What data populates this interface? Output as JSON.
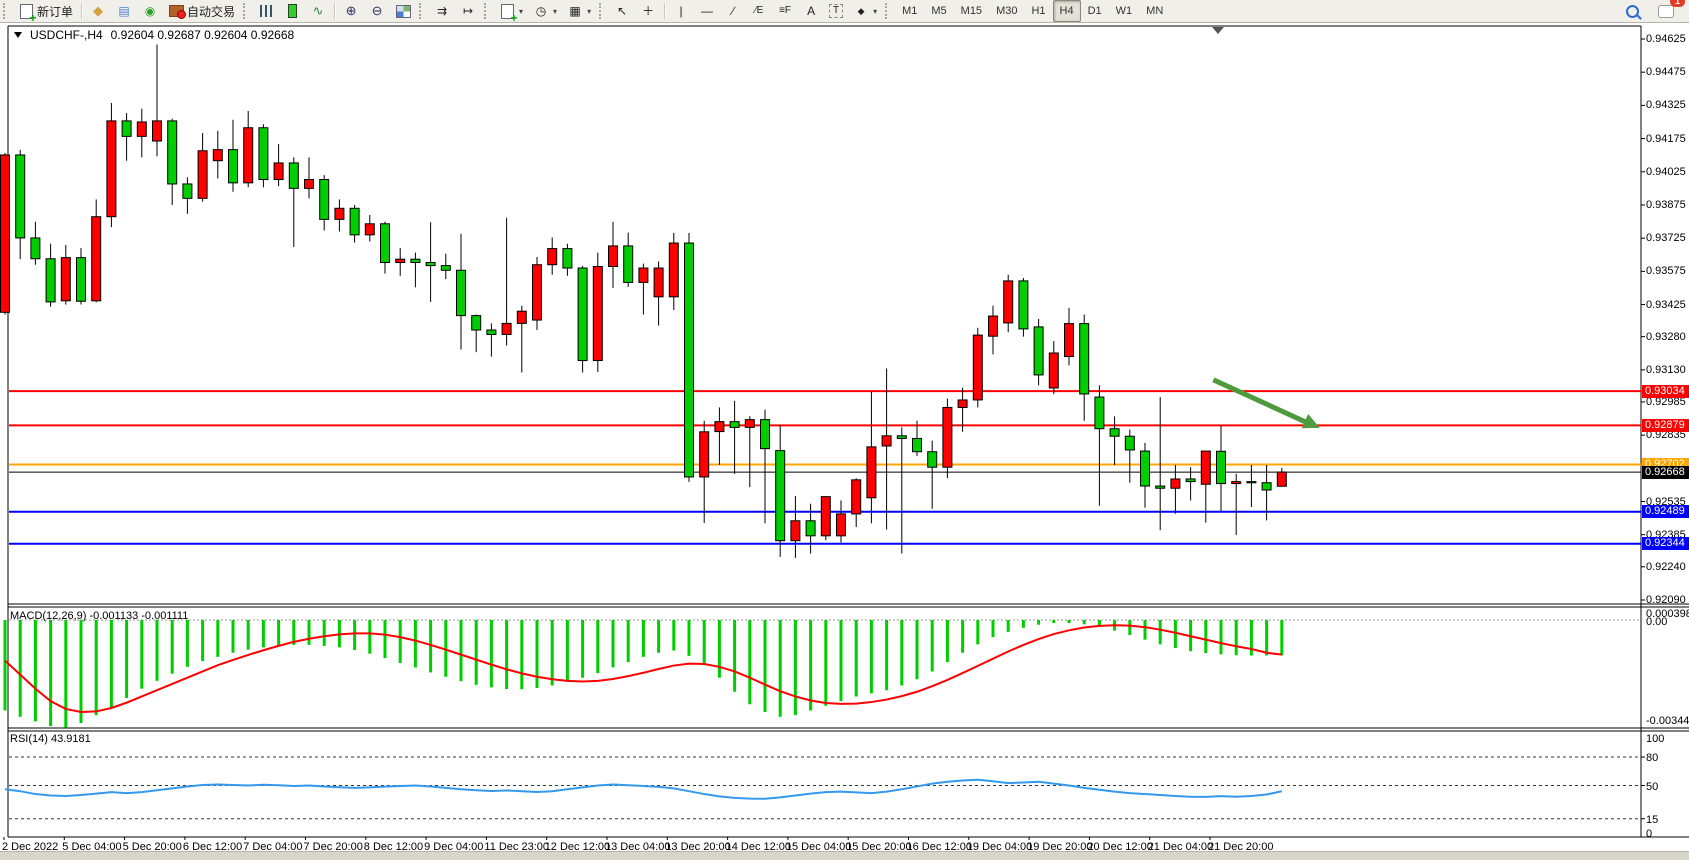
{
  "toolbar": {
    "new_order_label": "新订单",
    "auto_trading_label": "自动交易",
    "timeframes": [
      "M1",
      "M5",
      "M15",
      "M30",
      "H1",
      "H4",
      "D1",
      "W1",
      "MN"
    ],
    "active_timeframe": "H4",
    "chat_badge_count": "1"
  },
  "chart": {
    "symbol_title": "USDCHF-,H4",
    "ohlc_text": "0.92604  0.92687  0.92604  0.92668",
    "y_axis_labels": [
      "0.94625",
      "0.94475",
      "0.94325",
      "0.94175",
      "0.94025",
      "0.93875",
      "0.93725",
      "0.93575",
      "0.93425",
      "0.93280",
      "0.93130",
      "0.92985",
      "0.92835",
      "0.92535",
      "0.92385",
      "0.92240",
      "0.92090"
    ],
    "time_labels": [
      "2 Dec 2022",
      "5 Dec 04:00",
      "5 Dec 20:00",
      "6 Dec 12:00",
      "7 Dec 04:00",
      "7 Dec 20:00",
      "8 Dec 12:00",
      "9 Dec 04:00",
      "11 Dec 23:00",
      "12 Dec 12:00",
      "13 Dec 04:00",
      "13 Dec 20:00",
      "14 Dec 12:00",
      "15 Dec 04:00",
      "15 Dec 20:00",
      "16 Dec 12:00",
      "19 Dec 04:00",
      "19 Dec 20:00",
      "20 Dec 12:00",
      "21 Dec 04:00",
      "21 Dec 20:00"
    ],
    "colors": {
      "up_candle": "#FF0000",
      "down_candle": "#00CE00",
      "resistance_line": "#FF0000",
      "pivot_line": "#FFA500",
      "support_line": "#0000FF",
      "current_price_line": "#000000",
      "trend_arrow": "#4D9B3D",
      "macd_histogram": "#00CE00",
      "macd_signal": "#FF0000",
      "rsi_line": "#3399EE"
    }
  },
  "macd_panel": {
    "label": "MACD(12,26,9) -0.001133 -0.001111",
    "axis_max_label": "0.000398",
    "axis_zero_label": "0.00",
    "axis_min_label": "-0.003447"
  },
  "rsi_panel": {
    "label": "RSI(14) 43.9181",
    "axis_labels": [
      "100",
      "80",
      "50",
      "15",
      "0"
    ]
  },
  "chart_data": {
    "type": "candlestick",
    "symbol": "USDCHF",
    "timeframe": "H4",
    "title": "USDCHF-,H4",
    "last_bar_ohlc": {
      "open": 0.92604,
      "high": 0.92687,
      "low": 0.92604,
      "close": 0.92668
    },
    "current_price": 0.92668,
    "y_axis_range": [
      0.9209,
      0.94625
    ],
    "horizontal_lines": [
      {
        "price": 0.93034,
        "color": "#FF0000",
        "label": "0.93034"
      },
      {
        "price": 0.92879,
        "color": "#FF0000",
        "label": "0.92879"
      },
      {
        "price": 0.92702,
        "color": "#FFA500",
        "label": "0.92702"
      },
      {
        "price": 0.92489,
        "color": "#0000FF",
        "label": "0.92489"
      },
      {
        "price": 0.92344,
        "color": "#0000FF",
        "label": "0.92344"
      }
    ],
    "trend_arrow": {
      "from_bar": 79.5,
      "from_price": 0.93085,
      "to_bar": 86.5,
      "to_price": 0.92868
    },
    "candles": [
      [
        0.9339,
        0.9411,
        0.9338,
        0.94101
      ],
      [
        0.94101,
        0.94124,
        0.9363,
        0.93726
      ],
      [
        0.93726,
        0.93799,
        0.93605,
        0.93632
      ],
      [
        0.93632,
        0.937,
        0.93415,
        0.93437
      ],
      [
        0.93442,
        0.93694,
        0.93425,
        0.93637
      ],
      [
        0.93637,
        0.9368,
        0.93425,
        0.9344
      ],
      [
        0.93442,
        0.939,
        0.93435,
        0.93822
      ],
      [
        0.93822,
        0.94336,
        0.93775,
        0.94255
      ],
      [
        0.94255,
        0.9429,
        0.94075,
        0.94185
      ],
      [
        0.94185,
        0.9431,
        0.9409,
        0.9425
      ],
      [
        0.94164,
        0.946,
        0.94095,
        0.94255
      ],
      [
        0.94255,
        0.94265,
        0.93875,
        0.9397
      ],
      [
        0.9397,
        0.94,
        0.93835,
        0.93905
      ],
      [
        0.93905,
        0.942,
        0.9389,
        0.9412
      ],
      [
        0.94075,
        0.9421,
        0.93995,
        0.94125
      ],
      [
        0.94125,
        0.9426,
        0.93935,
        0.93975
      ],
      [
        0.93975,
        0.943,
        0.93955,
        0.94224
      ],
      [
        0.94224,
        0.9424,
        0.93955,
        0.9399
      ],
      [
        0.9399,
        0.9415,
        0.9396,
        0.94065
      ],
      [
        0.94065,
        0.9409,
        0.93685,
        0.9395
      ],
      [
        0.9395,
        0.9409,
        0.93905,
        0.9399
      ],
      [
        0.9399,
        0.9401,
        0.9376,
        0.9381
      ],
      [
        0.9381,
        0.939,
        0.93755,
        0.9386
      ],
      [
        0.9386,
        0.93875,
        0.93705,
        0.9374
      ],
      [
        0.9374,
        0.9383,
        0.9371,
        0.9379
      ],
      [
        0.9379,
        0.938,
        0.93565,
        0.93615
      ],
      [
        0.93615,
        0.9368,
        0.93555,
        0.9363
      ],
      [
        0.9363,
        0.9366,
        0.93503,
        0.93615
      ],
      [
        0.93615,
        0.93797,
        0.93437,
        0.93601
      ],
      [
        0.93601,
        0.93655,
        0.9354,
        0.9358
      ],
      [
        0.9358,
        0.93745,
        0.93222,
        0.93375
      ],
      [
        0.93375,
        0.9338,
        0.9321,
        0.9331
      ],
      [
        0.9331,
        0.9334,
        0.9319,
        0.9329
      ],
      [
        0.9329,
        0.93817,
        0.9324,
        0.9334
      ],
      [
        0.9334,
        0.9342,
        0.93118,
        0.93395
      ],
      [
        0.93355,
        0.9364,
        0.9331,
        0.93605
      ],
      [
        0.93605,
        0.93728,
        0.9356,
        0.93678
      ],
      [
        0.93678,
        0.937,
        0.93555,
        0.9359
      ],
      [
        0.9359,
        0.936,
        0.93118,
        0.93172
      ],
      [
        0.93172,
        0.9366,
        0.9312,
        0.93597
      ],
      [
        0.93597,
        0.93799,
        0.935,
        0.9369
      ],
      [
        0.9369,
        0.9375,
        0.93505,
        0.93525
      ],
      [
        0.93525,
        0.9361,
        0.9338,
        0.9359
      ],
      [
        0.9346,
        0.9362,
        0.9333,
        0.9359
      ],
      [
        0.9346,
        0.93749,
        0.934,
        0.93703
      ],
      [
        0.93703,
        0.93749,
        0.92624,
        0.92646
      ],
      [
        0.92646,
        0.929,
        0.92438,
        0.9285
      ],
      [
        0.92851,
        0.9296,
        0.927,
        0.92896
      ],
      [
        0.92896,
        0.9299,
        0.9266,
        0.9287
      ],
      [
        0.9287,
        0.9292,
        0.926,
        0.92905
      ],
      [
        0.92905,
        0.9295,
        0.92437,
        0.92774
      ],
      [
        0.92765,
        0.9288,
        0.92285,
        0.92358
      ],
      [
        0.92358,
        0.9256,
        0.9228,
        0.92448
      ],
      [
        0.92448,
        0.92525,
        0.923,
        0.9238
      ],
      [
        0.9238,
        0.9256,
        0.9236,
        0.92557
      ],
      [
        0.9238,
        0.9254,
        0.9235,
        0.92479
      ],
      [
        0.92479,
        0.9264,
        0.9242,
        0.92633
      ],
      [
        0.92552,
        0.9303,
        0.92437,
        0.92782
      ],
      [
        0.92786,
        0.93136,
        0.92408,
        0.92832
      ],
      [
        0.92832,
        0.9287,
        0.923,
        0.9282
      ],
      [
        0.9282,
        0.929,
        0.9274,
        0.9276
      ],
      [
        0.9276,
        0.9281,
        0.92502,
        0.9269
      ],
      [
        0.9269,
        0.93,
        0.9264,
        0.9296
      ],
      [
        0.9296,
        0.9305,
        0.9285,
        0.92994
      ],
      [
        0.92994,
        0.9332,
        0.9296,
        0.93287
      ],
      [
        0.93282,
        0.9342,
        0.932,
        0.93373
      ],
      [
        0.93342,
        0.9356,
        0.933,
        0.93532
      ],
      [
        0.93532,
        0.93545,
        0.9328,
        0.93315
      ],
      [
        0.93324,
        0.9336,
        0.9306,
        0.93107
      ],
      [
        0.93048,
        0.9326,
        0.9302,
        0.93206
      ],
      [
        0.9319,
        0.9341,
        0.9315,
        0.93339
      ],
      [
        0.93339,
        0.9338,
        0.929,
        0.93021
      ],
      [
        0.93007,
        0.9306,
        0.92516,
        0.92864
      ],
      [
        0.92864,
        0.9292,
        0.927,
        0.9283
      ],
      [
        0.9283,
        0.9286,
        0.9262,
        0.92768
      ],
      [
        0.92763,
        0.928,
        0.92507,
        0.92605
      ],
      [
        0.92605,
        0.93007,
        0.92406,
        0.92595
      ],
      [
        0.92595,
        0.927,
        0.9248,
        0.92637
      ],
      [
        0.92637,
        0.9269,
        0.9254,
        0.92625
      ],
      [
        0.92613,
        0.9274,
        0.9244,
        0.92763
      ],
      [
        0.92762,
        0.92881,
        0.9249,
        0.92616
      ],
      [
        0.92616,
        0.9266,
        0.92384,
        0.92625
      ],
      [
        0.92625,
        0.927,
        0.9251,
        0.9262
      ],
      [
        0.9262,
        0.927,
        0.9245,
        0.92587
      ],
      [
        0.92604,
        0.92687,
        0.92604,
        0.92668
      ]
    ],
    "macd": {
      "params": "12,26,9",
      "current_macd": -0.001133,
      "current_signal": -0.001111,
      "scale_max": 0.000398,
      "scale_min": -0.003447,
      "histogram_milli": [
        -2.9,
        -3.1,
        -3.25,
        -3.4,
        -3.45,
        -3.3,
        -3.05,
        -2.8,
        -2.5,
        -2.2,
        -1.95,
        -1.72,
        -1.5,
        -1.32,
        -1.18,
        -1.05,
        -0.95,
        -0.88,
        -0.83,
        -0.8,
        -0.8,
        -0.83,
        -0.88,
        -0.96,
        -1.08,
        -1.22,
        -1.38,
        -1.52,
        -1.68,
        -1.82,
        -1.96,
        -2.08,
        -2.16,
        -2.21,
        -2.22,
        -2.18,
        -2.1,
        -1.98,
        -1.85,
        -1.7,
        -1.52,
        -1.35,
        -1.18,
        -1.05,
        -0.98,
        -1.15,
        -1.45,
        -1.85,
        -2.3,
        -2.7,
        -2.95,
        -3.1,
        -3.05,
        -2.9,
        -2.75,
        -2.6,
        -2.45,
        -2.35,
        -2.25,
        -2.1,
        -1.9,
        -1.65,
        -1.35,
        -1.05,
        -0.78,
        -0.55,
        -0.38,
        -0.25,
        -0.15,
        -0.1,
        -0.1,
        -0.14,
        -0.22,
        -0.34,
        -0.48,
        -0.63,
        -0.78,
        -0.9,
        -1.0,
        -1.06,
        -1.1,
        -1.13,
        -1.14,
        -1.135,
        -1.133
      ],
      "signal_milli": [
        -1.3,
        -1.75,
        -2.2,
        -2.6,
        -2.85,
        -2.95,
        -2.93,
        -2.82,
        -2.65,
        -2.45,
        -2.25,
        -2.05,
        -1.85,
        -1.65,
        -1.45,
        -1.28,
        -1.12,
        -0.97,
        -0.83,
        -0.7,
        -0.6,
        -0.52,
        -0.46,
        -0.43,
        -0.43,
        -0.47,
        -0.55,
        -0.66,
        -0.8,
        -0.95,
        -1.11,
        -1.27,
        -1.43,
        -1.58,
        -1.71,
        -1.82,
        -1.9,
        -1.95,
        -1.97,
        -1.95,
        -1.89,
        -1.8,
        -1.69,
        -1.57,
        -1.46,
        -1.4,
        -1.41,
        -1.5,
        -1.65,
        -1.85,
        -2.07,
        -2.28,
        -2.45,
        -2.58,
        -2.66,
        -2.69,
        -2.68,
        -2.63,
        -2.55,
        -2.44,
        -2.3,
        -2.12,
        -1.92,
        -1.7,
        -1.47,
        -1.24,
        -1.01,
        -0.8,
        -0.61,
        -0.45,
        -0.33,
        -0.24,
        -0.19,
        -0.17,
        -0.18,
        -0.23,
        -0.31,
        -0.41,
        -0.52,
        -0.63,
        -0.74,
        -0.84,
        -0.93,
        -1.05,
        -1.111
      ]
    },
    "rsi": {
      "period": 14,
      "current": 43.9181,
      "levels": [
        80,
        50,
        15
      ],
      "values": [
        46,
        44,
        41,
        39.5,
        39,
        40,
        41.5,
        43,
        42,
        43,
        45,
        47,
        49,
        50.5,
        51,
        50.5,
        50,
        50.8,
        50.2,
        49.5,
        50,
        49,
        48.2,
        47.5,
        48,
        48.8,
        49.5,
        50,
        49,
        47.5,
        46,
        45,
        44.2,
        44.8,
        44,
        43.2,
        44,
        46,
        48,
        50,
        51,
        50.3,
        49.5,
        48.5,
        47,
        44,
        41,
        38.5,
        37,
        36.2,
        36,
        37.5,
        39.5,
        41.5,
        43,
        43.5,
        42.8,
        42,
        43.5,
        46,
        49,
        52,
        54,
        55.2,
        56,
        54.5,
        52.5,
        53.2,
        54,
        52,
        50,
        47.5,
        45.5,
        43.5,
        42,
        41,
        40,
        39,
        38.2,
        38,
        38.8,
        38.2,
        39,
        40.5,
        43.92
      ]
    }
  }
}
